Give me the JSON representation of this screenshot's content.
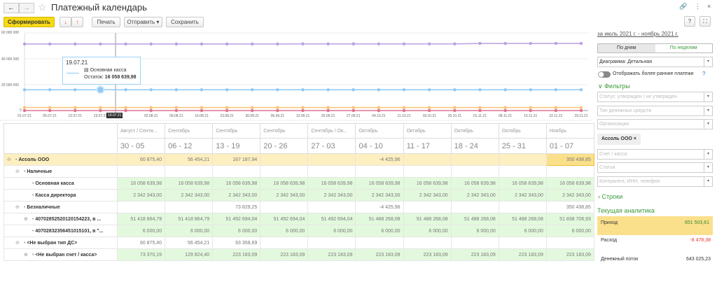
{
  "header": {
    "title": "Платежный календарь",
    "back": "←",
    "forward": "→"
  },
  "toolbar": {
    "generate": "Сформировать",
    "print": "Печать",
    "send": "Отправить",
    "save": "Сохранить",
    "help": "?"
  },
  "chart_data": {
    "type": "line",
    "ylim": [
      0,
      60000000
    ],
    "yticks": [
      "60 000 000",
      "40 000 000",
      "20 000 000",
      "0"
    ],
    "x": [
      "01.07.21",
      "05.07.21",
      "12.07.21",
      "19.07.21",
      "26.07.21",
      "02.08.21",
      "09.08.21",
      "16.08.21",
      "23.08.21",
      "30.08.21",
      "06.09.21",
      "13.09.21",
      "20.09.21",
      "27.09.21",
      "04.10.21",
      "11.10.21",
      "18.10.21",
      "25.10.21",
      "01.11.21",
      "08.11.21",
      "15.11.21",
      "22.11.21",
      "29.11.21"
    ],
    "cursor_label": "19.07.21",
    "series": [
      {
        "color": "#b9a0e0",
        "values": [
          51418864.79,
          51418864.79,
          51418864.79,
          51418864.79,
          51418864.79,
          51418864.79,
          51418864.79,
          51418864.79,
          51418864.79,
          51418864.79,
          51418864.79,
          51492694.04,
          51492694.04,
          51492694.04,
          51488268.08,
          51488268.08,
          51488268.08,
          51488268.08,
          51838706.93,
          51838706.93,
          51838706.93,
          51838706.93,
          51838706.93
        ]
      },
      {
        "color": "#8ec8f4",
        "values": [
          16058639.98,
          16058639.98,
          16058639.98,
          16058639.98,
          16058639.98,
          16058639.98,
          16058639.98,
          16058639.98,
          16058639.98,
          16058639.98,
          16058639.98,
          16058639.98,
          16058639.98,
          16058639.98,
          16058639.98,
          16058639.98,
          16058639.98,
          16058639.98,
          16058639.98,
          16058639.98,
          16058639.98,
          16058639.98,
          16058639.98
        ]
      },
      {
        "color": "#f8c27a",
        "values": [
          2342343,
          2342343,
          2342343,
          2342343,
          2342343,
          2342343,
          2342343,
          2342343,
          2342343,
          2342343,
          2342343,
          2342343,
          2342343,
          2342343,
          2342343,
          2342343,
          2342343,
          2342343,
          2342343,
          2342343,
          2342343,
          2342343,
          2342343
        ]
      },
      {
        "color": "#e07090",
        "values": [
          6000,
          6000,
          6000,
          6000,
          6000,
          6000,
          6000,
          6000,
          6000,
          6000,
          6000,
          6000,
          6000,
          6000,
          6000,
          6000,
          6000,
          6000,
          6000,
          6000,
          6000,
          6000,
          6000
        ]
      }
    ],
    "tooltip": {
      "date": "19.07.21",
      "series": "Основная касса",
      "label": "Остаток:",
      "value": "16 058 639,98"
    }
  },
  "table": {
    "months": [
      "Август / Сентя...",
      "Сентябрь",
      "Сентябрь",
      "Сентябрь",
      "Сентябрь / Ок...",
      "Октябрь",
      "Октябрь",
      "Октябрь",
      "Октябрь",
      "Ноябрь"
    ],
    "weeks": [
      "30 - 05",
      "06 - 12",
      "13 - 19",
      "20 - 26",
      "27 - 03",
      "04 - 10",
      "11 - 17",
      "18 - 24",
      "25 - 31",
      "01 - 07"
    ],
    "rows": [
      {
        "label": "Ассоль ООО",
        "cells": [
          "60 875,40",
          "56 454,21",
          "167 187,94",
          "",
          "",
          "-4 425,96",
          "",
          "",
          "",
          "350 438,85"
        ]
      },
      {
        "label": "Наличные",
        "cells": [
          "",
          "",
          "",
          "",
          "",
          "",
          "",
          "",
          "",
          ""
        ]
      },
      {
        "label": "Основная касса",
        "cells": [
          "16 058 639,98",
          "16 058 639,98",
          "16 058 639,98",
          "16 058 639,98",
          "16 058 639,98",
          "16 058 639,98",
          "16 058 639,98",
          "16 058 639,98",
          "16 058 639,98",
          "16 058 639,98"
        ]
      },
      {
        "label": "Касса директора",
        "cells": [
          "2 342 343,00",
          "2 342 343,00",
          "2 342 343,00",
          "2 342 343,00",
          "2 342 343,00",
          "2 342 343,00",
          "2 342 343,00",
          "2 342 343,00",
          "2 342 343,00",
          "2 342 343,00"
        ]
      },
      {
        "label": "Безналичные",
        "cells": [
          "",
          "",
          "73 829,25",
          "",
          "",
          "-4 425,96",
          "",
          "",
          "",
          "350 438,85"
        ]
      },
      {
        "label": "40702852520120154223, в ...",
        "cells": [
          "51 418 864,79",
          "51 418 864,79",
          "51 492 694,04",
          "51 492 694,04",
          "51 492 694,04",
          "51 488 268,08",
          "51 488 268,08",
          "51 488 268,08",
          "51 488 268,08",
          "51 838 706,93"
        ]
      },
      {
        "label": "40702832356451015101, в \"...",
        "cells": [
          "6 000,00",
          "6 000,00",
          "6 000,00",
          "6 000,00",
          "6 000,00",
          "6 000,00",
          "6 000,00",
          "6 000,00",
          "6 000,00",
          "6 000,00"
        ]
      },
      {
        "label": "<Не выбран тип ДС>",
        "cells": [
          "60 875,40",
          "56 454,21",
          "93 358,69",
          "",
          "",
          "",
          "",
          "",
          "",
          ""
        ]
      },
      {
        "label": "<Не выбран счет / касса>",
        "cells": [
          "73 370,19",
          "129 824,40",
          "223 183,09",
          "223 183,09",
          "223 183,09",
          "223 183,09",
          "223 183,09",
          "223 183,09",
          "223 183,09",
          "223 183,09"
        ]
      }
    ]
  },
  "panel": {
    "period": "за июль 2021 г. - ноябрь 2021 г.",
    "by_days": "По дням",
    "by_weeks": "По неделям",
    "diagram": "Диаграмма: Детальная",
    "earlier": "Отображать более ранние платежи",
    "earlier_help": "?",
    "filters": "Фильтры",
    "status_ph": "Статус: утвержден / не утвержден",
    "money_type_ph": "Тип денежных средств",
    "org_ph": "Организация",
    "org_tag": "Ассоль ООО",
    "account_ph": "Счет / касса",
    "article_ph": "Статья",
    "contractor_ph": "Контрагент, ИНН, телефон",
    "rows": "Строки",
    "analytics_title": "Текущая аналитика",
    "income_label": "Приход",
    "income": "651 503,61",
    "expense_label": "Расход",
    "expense": "-8 478,38",
    "flow_label": "Денежный поток",
    "flow": "643 025,23"
  }
}
